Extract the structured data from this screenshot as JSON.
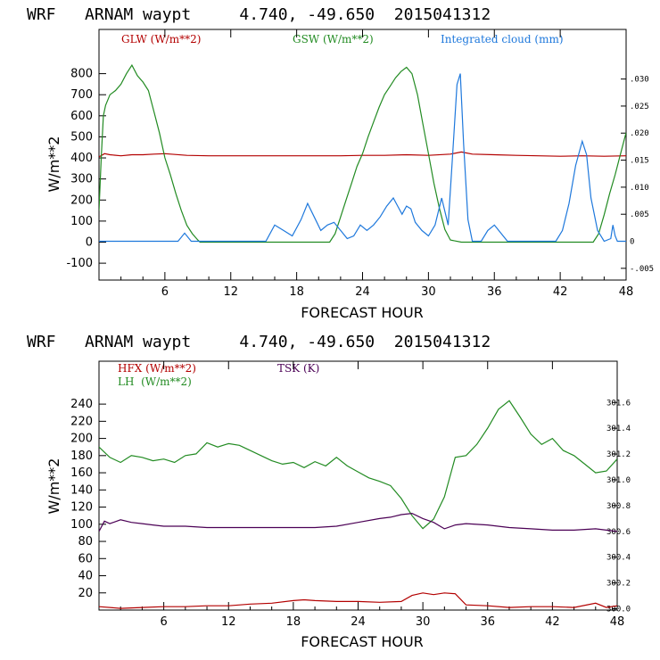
{
  "chart_data": [
    {
      "type": "line",
      "title": "WRF   ARNAM waypt     4.740, -49.650  2015041312",
      "xlabel": "FORECAST HOUR",
      "ylabel": "W/m**2",
      "xlim": [
        0,
        48
      ],
      "ylim": [
        -180,
        1010
      ],
      "xticks": [
        6,
        12,
        18,
        24,
        30,
        36,
        42,
        48
      ],
      "yticks": [
        -100,
        0,
        100,
        200,
        300,
        400,
        500,
        600,
        700,
        800
      ],
      "right_axis": {
        "ylim": [
          -0.00717,
          0.03917
        ],
        "ticks": [
          -0.005,
          0,
          0.005,
          0.01,
          0.015,
          0.02,
          0.025,
          0.03
        ],
        "tick_labels": [
          "-.005",
          "0",
          ".005",
          ".010",
          ".015",
          ".020",
          ".025",
          ".030"
        ]
      },
      "grid": false,
      "legend_position": "top",
      "series": [
        {
          "name": "GLW (W/m**2)",
          "color": "#b30000",
          "axis": "left",
          "x": [
            0,
            0.5,
            1,
            2,
            3,
            4,
            5,
            6,
            8,
            10,
            12,
            14,
            16,
            18,
            20,
            22,
            24,
            26,
            28,
            30,
            32,
            33,
            34,
            36,
            38,
            40,
            42,
            44,
            46,
            48
          ],
          "y": [
            405,
            420,
            415,
            410,
            415,
            415,
            418,
            420,
            412,
            410,
            410,
            410,
            410,
            410,
            410,
            410,
            412,
            412,
            415,
            412,
            418,
            428,
            418,
            415,
            412,
            410,
            408,
            410,
            408,
            410
          ]
        },
        {
          "name": "GSW (W/m**2)",
          "color": "#228b22",
          "axis": "left",
          "x": [
            0,
            0.2,
            0.4,
            0.6,
            1,
            1.5,
            2,
            2.5,
            3,
            3.5,
            4,
            4.5,
            5,
            5.5,
            6,
            6.5,
            7,
            7.5,
            8,
            8.5,
            9,
            9.2,
            21,
            21.5,
            22,
            22.5,
            23,
            23.5,
            24,
            24.5,
            25,
            25.5,
            26,
            26.5,
            27,
            27.5,
            28,
            28.5,
            29,
            29.5,
            30,
            30.5,
            31,
            31.5,
            32,
            33,
            45,
            45.5,
            46,
            46.5,
            47,
            47.5,
            48
          ],
          "y": [
            150,
            400,
            600,
            650,
            700,
            720,
            750,
            800,
            840,
            790,
            760,
            720,
            620,
            520,
            400,
            320,
            230,
            150,
            80,
            40,
            10,
            0,
            0,
            40,
            120,
            200,
            280,
            360,
            420,
            500,
            570,
            640,
            700,
            740,
            780,
            810,
            830,
            800,
            700,
            560,
            420,
            280,
            160,
            60,
            10,
            0,
            0,
            40,
            130,
            230,
            320,
            420,
            520
          ]
        },
        {
          "name": "Integrated cloud (mm)",
          "color": "#1e78dc",
          "axis": "right",
          "x": [
            0,
            7.2,
            7.8,
            8.4,
            15.2,
            16.0,
            16.8,
            17.6,
            18.4,
            19.0,
            19.6,
            20.2,
            20.8,
            21.4,
            22.0,
            22.6,
            23.2,
            23.8,
            24.4,
            25.0,
            25.6,
            26.2,
            26.8,
            27.2,
            27.6,
            28.0,
            28.4,
            28.8,
            29.4,
            30.0,
            30.6,
            31.2,
            31.8,
            32.2,
            32.6,
            32.9,
            33.2,
            33.6,
            34.0,
            34.8,
            35.4,
            36.0,
            36.6,
            37.2,
            41.6,
            42.2,
            42.8,
            43.4,
            44.0,
            44.4,
            44.8,
            45.4,
            46.0,
            46.6,
            46.8,
            47.0,
            47.2,
            48
          ],
          "y": [
            0,
            0,
            0.0015,
            0,
            0,
            0.003,
            0.002,
            0.001,
            0.004,
            0.007,
            0.0045,
            0.002,
            0.003,
            0.0035,
            0.002,
            0.0005,
            0.001,
            0.003,
            0.002,
            0.003,
            0.0045,
            0.0065,
            0.008,
            0.0065,
            0.005,
            0.0065,
            0.006,
            0.0035,
            0.002,
            0.001,
            0.003,
            0.008,
            0.003,
            0.016,
            0.029,
            0.031,
            0.018,
            0.004,
            0,
            0,
            0.002,
            0.003,
            0.0015,
            0,
            0,
            0.002,
            0.007,
            0.014,
            0.0185,
            0.016,
            0.008,
            0.002,
            0,
            0.0005,
            0.003,
            0.001,
            0,
            0
          ]
        }
      ]
    },
    {
      "type": "line",
      "title": "WRF   ARNAM waypt     4.740, -49.650  2015041312",
      "xlabel": "FORECAST HOUR",
      "ylabel": "W/m**2",
      "xlim": [
        0,
        48
      ],
      "ylim": [
        0,
        290
      ],
      "xticks": [
        6,
        12,
        18,
        24,
        30,
        36,
        42,
        48
      ],
      "yticks": [
        20,
        40,
        60,
        80,
        100,
        120,
        140,
        160,
        180,
        200,
        220,
        240
      ],
      "right_axis": {
        "ylim": [
          299.99,
          301.92
        ],
        "ticks": [
          300.0,
          300.2,
          300.4,
          300.6,
          300.8,
          301.0,
          301.2,
          301.4,
          301.6
        ],
        "tick_labels": [
          "300.0",
          "300.2",
          "300.4",
          "300.6",
          "300.8",
          "301.0",
          "301.2",
          "301.4",
          "301.6"
        ]
      },
      "grid": false,
      "legend_position": "top-left",
      "series": [
        {
          "name": "HFX (W/m**2)",
          "color": "#b30000",
          "axis": "left",
          "x": [
            0,
            2,
            4,
            6,
            8,
            10,
            12,
            14,
            16,
            18,
            19,
            20,
            22,
            24,
            26,
            28,
            29,
            30,
            31,
            32,
            33,
            34,
            36,
            38,
            40,
            42,
            44,
            46,
            47,
            48
          ],
          "y": [
            4,
            2,
            3,
            4,
            4,
            5,
            5,
            7,
            8,
            11,
            12,
            11,
            10,
            10,
            9,
            10,
            17,
            20,
            18,
            20,
            19,
            6,
            5,
            3,
            4,
            4,
            3,
            8,
            3,
            5
          ],
          "axis_note": "left"
        },
        {
          "name": "LH  (W/m**2)",
          "color": "#228b22",
          "axis": "left",
          "x": [
            0,
            1,
            2,
            3,
            4,
            5,
            6,
            7,
            8,
            9,
            10,
            11,
            12,
            13,
            14,
            15,
            16,
            17,
            18,
            19,
            20,
            21,
            22,
            23,
            24,
            25,
            26,
            27,
            28,
            29,
            30,
            31,
            32,
            33,
            34,
            35,
            36,
            37,
            38,
            39,
            40,
            41,
            42,
            43,
            44,
            45,
            46,
            47,
            48
          ],
          "y": [
            190,
            178,
            172,
            180,
            178,
            174,
            176,
            172,
            180,
            182,
            195,
            190,
            194,
            192,
            186,
            180,
            174,
            170,
            172,
            166,
            173,
            168,
            178,
            168,
            161,
            154,
            150,
            145,
            130,
            110,
            95,
            106,
            132,
            178,
            180,
            193,
            212,
            234,
            244,
            225,
            205,
            193,
            200,
            186,
            180,
            170,
            160,
            162,
            176
          ]
        },
        {
          "name": "TSK (K)",
          "color": "#4b0055",
          "axis": "right",
          "x": [
            0,
            0.5,
            1,
            2,
            3,
            4,
            5,
            6,
            8,
            10,
            12,
            14,
            16,
            18,
            20,
            22,
            24,
            26,
            27,
            28,
            29,
            30,
            31,
            32,
            33,
            34,
            36,
            38,
            40,
            42,
            44,
            46,
            47,
            48
          ],
          "y": [
            300.6,
            300.68,
            300.66,
            300.69,
            300.67,
            300.66,
            300.65,
            300.64,
            300.64,
            300.63,
            300.63,
            300.63,
            300.63,
            300.63,
            300.63,
            300.64,
            300.67,
            300.7,
            300.71,
            300.73,
            300.74,
            300.7,
            300.67,
            300.62,
            300.65,
            300.66,
            300.65,
            300.63,
            300.62,
            300.61,
            300.61,
            300.62,
            300.61,
            300.6
          ]
        }
      ]
    }
  ]
}
